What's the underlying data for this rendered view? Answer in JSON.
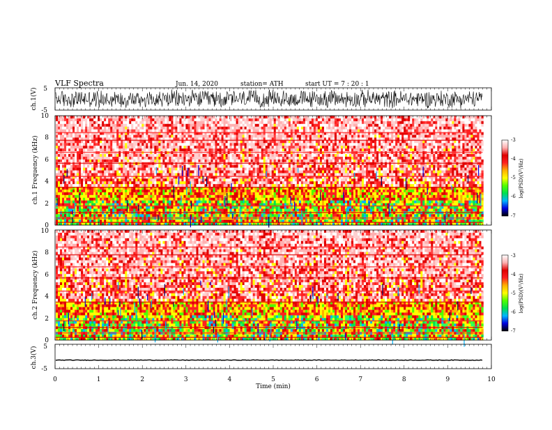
{
  "header": {
    "title": "VLF  Spectra",
    "date": "Jun. 14, 2020",
    "station": "station= ATH",
    "start": "start  UT  =    7  : 20 : 1"
  },
  "chart_data": [
    {
      "type": "line",
      "name": "ch1-waveform",
      "ylabel": "ch.1(V)",
      "ylim": [
        -5,
        5
      ],
      "yticks": [
        "5",
        "-5"
      ],
      "xlim": [
        0,
        10
      ],
      "data_extent_min": 9.8,
      "amplitude_range": [
        -4.5,
        4.5
      ]
    },
    {
      "type": "heatmap",
      "name": "ch1-spectrogram",
      "ylabel": "ch.1  Frequency  (kHz)",
      "ylim": [
        0,
        10
      ],
      "yticks": [
        "0",
        "2",
        "4",
        "6",
        "8",
        "10"
      ],
      "xlim": [
        0,
        10
      ],
      "colorbar": {
        "label": "log(PSD)(V²/Hz)",
        "range": [
          -7,
          -3
        ],
        "ticks": [
          "-3",
          "-4",
          "-5",
          "-6",
          "-7"
        ],
        "colors": [
          "#000000",
          "#0000e0",
          "#00b4ff",
          "#00e050",
          "#50ff00",
          "#ffff00",
          "#ffb000",
          "#ff2020",
          "#e00000",
          "#ffb0b0",
          "#ffffff"
        ]
      }
    },
    {
      "type": "heatmap",
      "name": "ch2-spectrogram",
      "ylabel": "ch.2  Frequency  (kHz)",
      "ylim": [
        0,
        10
      ],
      "yticks": [
        "0",
        "2",
        "4",
        "6",
        "8",
        "10"
      ],
      "xlim": [
        0,
        10
      ],
      "colorbar": {
        "label": "log(PSD)(V²/Hz)",
        "range": [
          -7,
          -3
        ],
        "ticks": [
          "-3",
          "-4",
          "-5",
          "-6",
          "-7"
        ],
        "colors": [
          "#000000",
          "#0000e0",
          "#00b4ff",
          "#00e050",
          "#50ff00",
          "#ffff00",
          "#ffb000",
          "#ff2020",
          "#e00000",
          "#ffb0b0",
          "#ffffff"
        ]
      }
    },
    {
      "type": "line",
      "name": "ch3-waveform",
      "ylabel": "ch.3(V)",
      "ylim": [
        -5,
        5
      ],
      "yticks": [
        "5",
        "-5"
      ],
      "xlim": [
        0,
        10
      ],
      "xlabel": "Time  (min)",
      "xticks": [
        "0",
        "1",
        "2",
        "3",
        "4",
        "5",
        "6",
        "7",
        "8",
        "9",
        "10"
      ],
      "data_extent_min": 9.8,
      "baseline": -1.5
    }
  ]
}
